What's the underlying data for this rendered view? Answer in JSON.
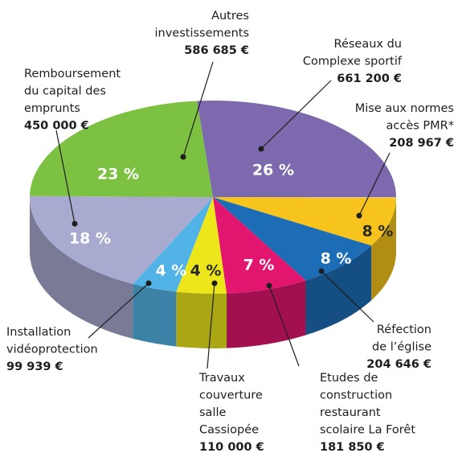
{
  "chart_data": {
    "type": "pie3d",
    "categories": [
      [
        "Réseaux du",
        "Complexe sportif"
      ],
      [
        "Mise aux normes",
        "accès PMR*"
      ],
      [
        "Réfection",
        "de l’église"
      ],
      [
        "Etudes de",
        "construction",
        "restaurant",
        "scolaire La Forêt"
      ],
      [
        "Travaux",
        "couverture",
        "salle",
        "Cassiopée"
      ],
      [
        "Installation",
        "vidéoprotection"
      ],
      [
        "Remboursement",
        "du capital des",
        "emprunts"
      ],
      [
        "Autres",
        "investissements"
      ]
    ],
    "values": [
      661200,
      208967,
      204646,
      181850,
      110000,
      99939,
      450000,
      586685
    ],
    "value_labels": [
      "661 200 €",
      "208 967 €",
      "204 646 €",
      "181 850 €",
      "110 000 €",
      "99 939 €",
      "450 000 €",
      "586 685 €"
    ],
    "percents": [
      26,
      8,
      8,
      7,
      4,
      4,
      18,
      23
    ],
    "percent_labels": [
      "26 %",
      "8 %",
      "8 %",
      "7 %",
      "4 %",
      "4 %",
      "18 %",
      "23 %"
    ],
    "colors": [
      "#7c69ae",
      "#f6c41c",
      "#1c6db5",
      "#e3166f",
      "#ede61b",
      "#52b4e6",
      "#a8aad0",
      "#7cc142"
    ]
  }
}
